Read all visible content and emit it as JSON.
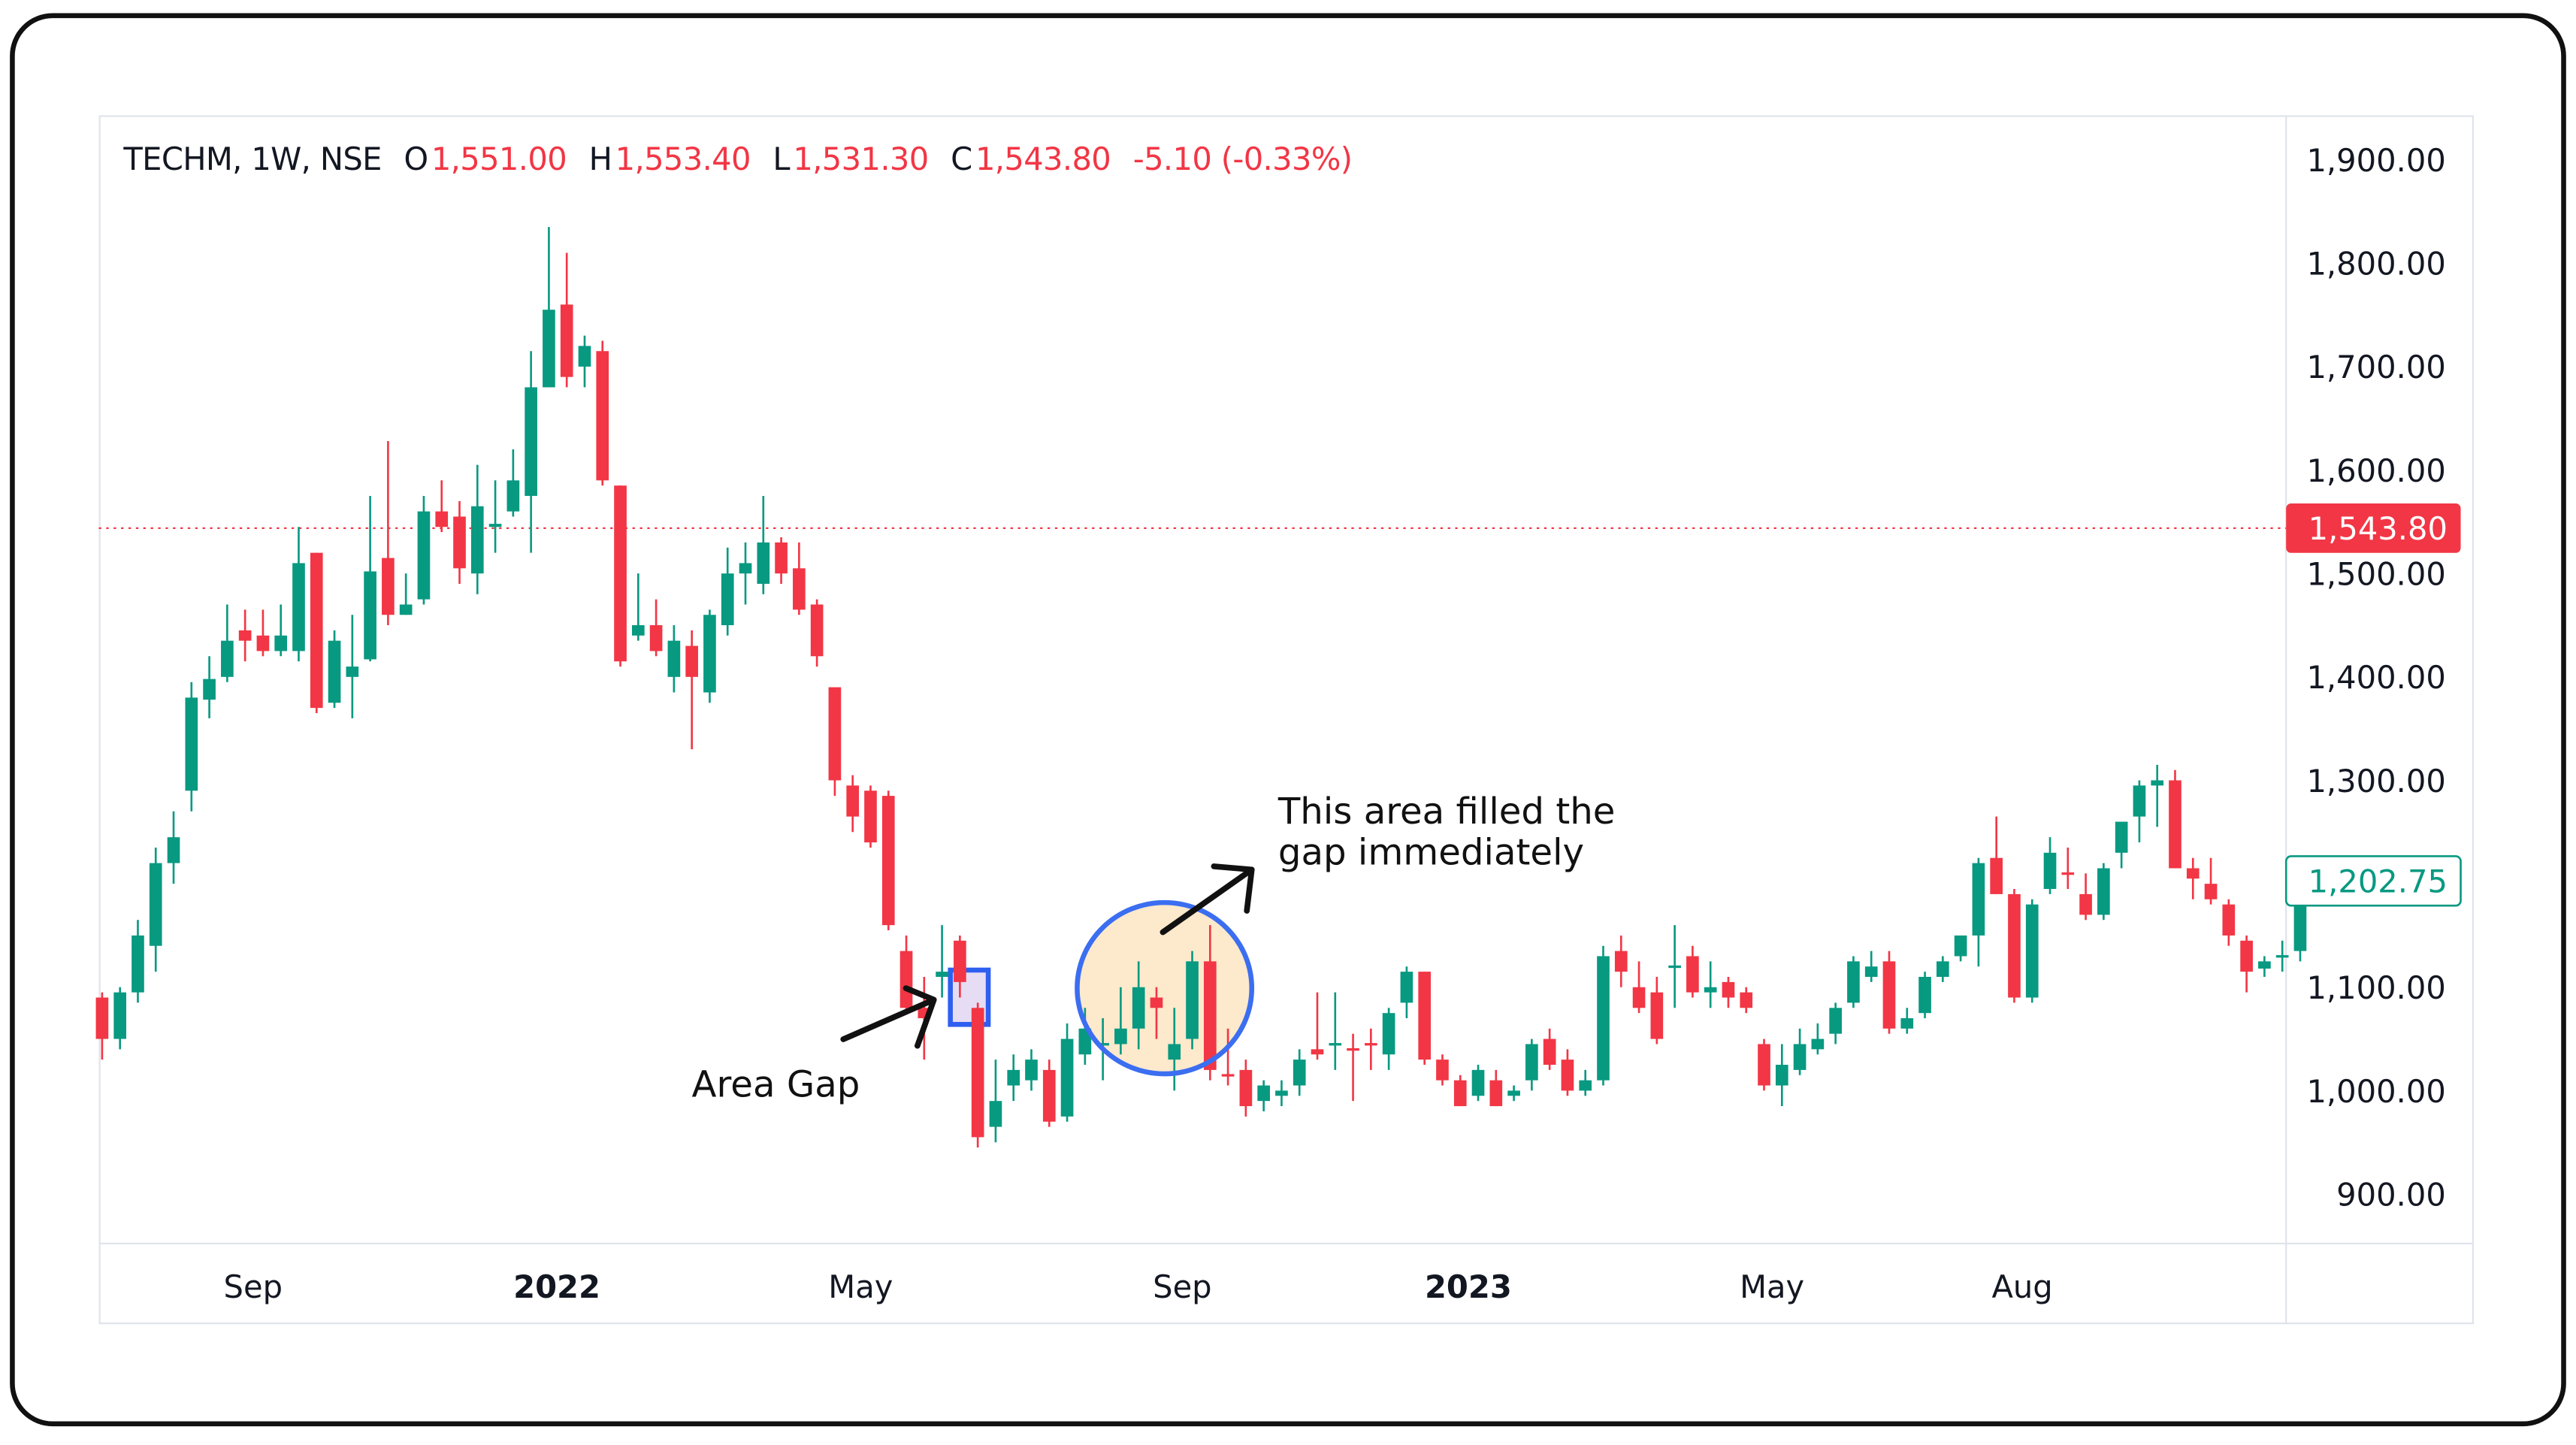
{
  "header": {
    "symbol": "TECHM, 1W, NSE",
    "open_label": "O",
    "open": "1,551.00",
    "high_label": "H",
    "high": "1,553.40",
    "low_label": "L",
    "low": "1,531.30",
    "close_label": "C",
    "close": "1,543.80",
    "change": "-5.10 (-0.33%)"
  },
  "annotations": {
    "gap_label": "Area Gap",
    "fill_line1": "This  area filled the",
    "fill_line2": "gap immediately"
  },
  "chart_data": {
    "type": "candlestick",
    "title": "",
    "colors": {
      "up": "#089981",
      "down": "#f23645",
      "gap_box": "#2f5ff0",
      "circle": "#3b6ef0",
      "circle_fill": "#fde9cc"
    },
    "ylim": [
      870,
      1950
    ],
    "y_ticks": [
      "1,900.00",
      "1,800.00",
      "1,700.00",
      "1,600.00",
      "1,500.00",
      "1,400.00",
      "1,300.00",
      "1,100.00",
      "1,000.00",
      "900.00"
    ],
    "y_tick_values": [
      1900,
      1800,
      1700,
      1600,
      1500,
      1400,
      1300,
      1100,
      1000,
      900
    ],
    "x_ticks": [
      {
        "label": "Sep",
        "bar": 9
      },
      {
        "label": "2022",
        "bar": 26
      },
      {
        "label": "May",
        "bar": 43
      },
      {
        "label": "Sep",
        "bar": 61
      },
      {
        "label": "2023",
        "bar": 77
      },
      {
        "label": "May",
        "bar": 94
      },
      {
        "label": "Aug",
        "bar": 108
      }
    ],
    "last_price_marker": {
      "label": "1,543.80",
      "value": 1543.8,
      "color": "#f23645"
    },
    "current_marker": {
      "label": "1,202.75",
      "value": 1202.75,
      "color": "#089981"
    },
    "candles_ohlc": [
      [
        1090,
        1095,
        1030,
        1050
      ],
      [
        1050,
        1100,
        1040,
        1095
      ],
      [
        1095,
        1165,
        1085,
        1150
      ],
      [
        1140,
        1235,
        1115,
        1220
      ],
      [
        1220,
        1270,
        1200,
        1245
      ],
      [
        1290,
        1395,
        1270,
        1380
      ],
      [
        1378,
        1420,
        1360,
        1398
      ],
      [
        1400,
        1470,
        1395,
        1435
      ],
      [
        1445,
        1465,
        1415,
        1435
      ],
      [
        1440,
        1465,
        1420,
        1425
      ],
      [
        1425,
        1470,
        1420,
        1440
      ],
      [
        1425,
        1545,
        1415,
        1510
      ],
      [
        1520,
        1520,
        1365,
        1370
      ],
      [
        1375,
        1445,
        1370,
        1435
      ],
      [
        1400,
        1460,
        1360,
        1410
      ],
      [
        1417,
        1575,
        1415,
        1502
      ],
      [
        1515,
        1628,
        1450,
        1460
      ],
      [
        1460,
        1500,
        1460,
        1470
      ],
      [
        1475,
        1575,
        1470,
        1560
      ],
      [
        1560,
        1590,
        1540,
        1545
      ],
      [
        1555,
        1570,
        1490,
        1505
      ],
      [
        1500,
        1605,
        1480,
        1565
      ],
      [
        1545,
        1590,
        1520,
        1548
      ],
      [
        1560,
        1620,
        1555,
        1590
      ],
      [
        1575,
        1715,
        1520,
        1680
      ],
      [
        1680,
        1835,
        1685,
        1755
      ],
      [
        1760,
        1810,
        1680,
        1690
      ],
      [
        1700,
        1730,
        1680,
        1720
      ],
      [
        1715,
        1725,
        1585,
        1590
      ],
      [
        1585,
        1585,
        1410,
        1415
      ],
      [
        1440,
        1500,
        1435,
        1450
      ],
      [
        1450,
        1475,
        1420,
        1425
      ],
      [
        1400,
        1450,
        1385,
        1435
      ],
      [
        1430,
        1445,
        1330,
        1400
      ],
      [
        1385,
        1465,
        1375,
        1460
      ],
      [
        1450,
        1525,
        1440,
        1500
      ],
      [
        1500,
        1530,
        1470,
        1510
      ],
      [
        1490,
        1575,
        1480,
        1530
      ],
      [
        1530,
        1535,
        1490,
        1500
      ],
      [
        1505,
        1530,
        1460,
        1465
      ],
      [
        1470,
        1475,
        1410,
        1420
      ],
      [
        1390,
        1390,
        1285,
        1300
      ],
      [
        1295,
        1305,
        1250,
        1265
      ],
      [
        1290,
        1295,
        1235,
        1240
      ],
      [
        1285,
        1290,
        1155,
        1160
      ],
      [
        1135,
        1150,
        1075,
        1080
      ],
      [
        1080,
        1110,
        1030,
        1070
      ],
      [
        1110,
        1160,
        1090,
        1115
      ],
      [
        1145,
        1150,
        1090,
        1105
      ],
      [
        1080,
        1085,
        945,
        955
      ],
      [
        965,
        1030,
        950,
        990
      ],
      [
        1005,
        1035,
        990,
        1020
      ],
      [
        1010,
        1040,
        1000,
        1030
      ],
      [
        1020,
        1030,
        965,
        970
      ],
      [
        975,
        1065,
        970,
        1050
      ],
      [
        1035,
        1080,
        1025,
        1060
      ],
      [
        1045,
        1070,
        1010,
        1046
      ],
      [
        1045,
        1100,
        1035,
        1060
      ],
      [
        1060,
        1125,
        1040,
        1100
      ],
      [
        1090,
        1100,
        1050,
        1080
      ],
      [
        1030,
        1080,
        1000,
        1045
      ],
      [
        1050,
        1135,
        1040,
        1125
      ],
      [
        1125,
        1160,
        1010,
        1020
      ],
      [
        1016,
        1060,
        1005,
        1015
      ],
      [
        1020,
        1030,
        975,
        985
      ],
      [
        990,
        1010,
        980,
        1005
      ],
      [
        995,
        1010,
        985,
        1000
      ],
      [
        1005,
        1040,
        995,
        1030
      ],
      [
        1040,
        1095,
        1030,
        1035
      ],
      [
        1044,
        1095,
        1020,
        1046
      ],
      [
        1041,
        1055,
        990,
        1040
      ],
      [
        1046,
        1060,
        1020,
        1045
      ],
      [
        1035,
        1080,
        1020,
        1075
      ],
      [
        1085,
        1120,
        1070,
        1115
      ],
      [
        1115,
        1115,
        1025,
        1030
      ],
      [
        1030,
        1035,
        1005,
        1010
      ],
      [
        1010,
        1015,
        985,
        985
      ],
      [
        995,
        1025,
        990,
        1020
      ],
      [
        1010,
        1020,
        985,
        985
      ],
      [
        995,
        1005,
        990,
        1000
      ],
      [
        1010,
        1050,
        1000,
        1045
      ],
      [
        1050,
        1060,
        1020,
        1025
      ],
      [
        1030,
        1040,
        995,
        1000
      ],
      [
        1000,
        1020,
        995,
        1010
      ],
      [
        1010,
        1140,
        1005,
        1130
      ],
      [
        1135,
        1150,
        1100,
        1115
      ],
      [
        1100,
        1125,
        1075,
        1080
      ],
      [
        1095,
        1110,
        1045,
        1050
      ],
      [
        1119,
        1160,
        1080,
        1121
      ],
      [
        1130,
        1140,
        1090,
        1095
      ],
      [
        1095,
        1125,
        1080,
        1100
      ],
      [
        1105,
        1110,
        1080,
        1090
      ],
      [
        1095,
        1100,
        1075,
        1080
      ],
      [
        1045,
        1050,
        1000,
        1005
      ],
      [
        1005,
        1045,
        985,
        1025
      ],
      [
        1020,
        1060,
        1015,
        1045
      ],
      [
        1040,
        1065,
        1035,
        1050
      ],
      [
        1055,
        1085,
        1045,
        1080
      ],
      [
        1085,
        1130,
        1080,
        1125
      ],
      [
        1110,
        1135,
        1105,
        1120
      ],
      [
        1125,
        1135,
        1055,
        1060
      ],
      [
        1060,
        1080,
        1055,
        1070
      ],
      [
        1075,
        1115,
        1070,
        1110
      ],
      [
        1110,
        1130,
        1105,
        1125
      ],
      [
        1130,
        1150,
        1125,
        1150
      ],
      [
        1150,
        1225,
        1120,
        1220
      ],
      [
        1225,
        1265,
        1190,
        1190
      ],
      [
        1190,
        1195,
        1085,
        1090
      ],
      [
        1090,
        1185,
        1085,
        1180
      ],
      [
        1195,
        1245,
        1190,
        1230
      ],
      [
        1211,
        1235,
        1195,
        1209
      ],
      [
        1190,
        1210,
        1165,
        1170
      ],
      [
        1170,
        1220,
        1165,
        1215
      ],
      [
        1230,
        1255,
        1215,
        1260
      ],
      [
        1265,
        1300,
        1240,
        1295
      ],
      [
        1295,
        1315,
        1255,
        1300
      ],
      [
        1300,
        1310,
        1215,
        1215
      ],
      [
        1215,
        1225,
        1185,
        1205
      ],
      [
        1200,
        1225,
        1180,
        1185
      ],
      [
        1180,
        1185,
        1140,
        1150
      ],
      [
        1145,
        1150,
        1095,
        1115
      ],
      [
        1118,
        1130,
        1110,
        1125
      ],
      [
        1129,
        1145,
        1115,
        1131
      ],
      [
        1135,
        1210,
        1125,
        1200
      ]
    ]
  }
}
